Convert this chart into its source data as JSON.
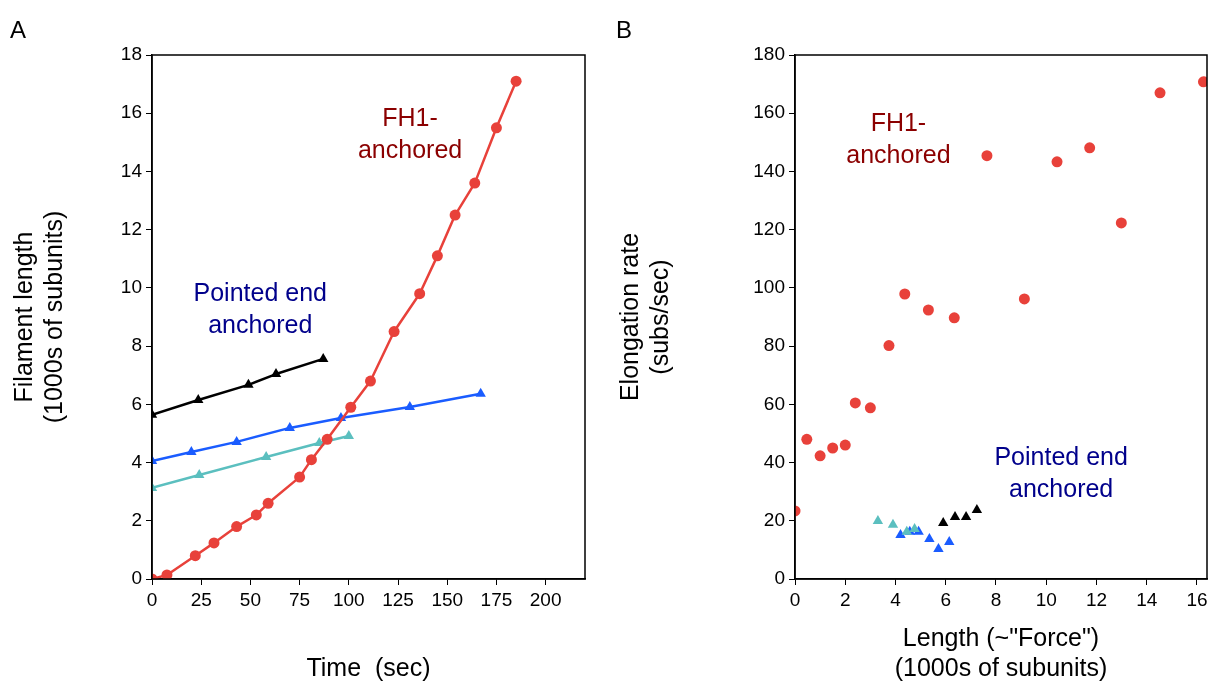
{
  "chart_data": [
    {
      "type": "line",
      "title": "A",
      "xlabel": "Time  (sec)",
      "ylabel": "Filament length\n(1000s of subunits)",
      "xlim": [
        0,
        220
      ],
      "xticks": [
        0,
        25,
        50,
        75,
        100,
        125,
        150,
        175,
        200
      ],
      "ylim": [
        0,
        18
      ],
      "yticks": [
        0,
        2,
        4,
        6,
        8,
        10,
        12,
        14,
        16,
        18
      ],
      "grid": false,
      "legend": false,
      "line_style": "solid",
      "series": [
        {
          "color": "#e8413a",
          "marker": "circle",
          "x": [
            0,
            7.6,
            22,
            31.5,
            43,
            53,
            59,
            75,
            81,
            89,
            101,
            111,
            123,
            136,
            145,
            154,
            164,
            175,
            185
          ],
          "values": [
            0,
            0.14,
            0.8,
            1.24,
            1.8,
            2.2,
            2.6,
            3.5,
            4.1,
            4.8,
            5.9,
            6.8,
            8.5,
            9.8,
            11.1,
            12.5,
            13.6,
            15.5,
            17.1
          ]
        },
        {
          "color": "#000000",
          "marker": "triangle",
          "x": [
            0,
            23.5,
            49,
            63,
            87
          ],
          "values": [
            5.64,
            6.15,
            6.67,
            7.04,
            7.56
          ]
        },
        {
          "color": "#1a5cff",
          "marker": "triangle",
          "x": [
            0,
            20,
            43,
            70,
            96,
            131,
            167
          ],
          "values": [
            4.05,
            4.36,
            4.71,
            5.19,
            5.53,
            5.91,
            6.36
          ]
        },
        {
          "color": "#5bbfbf",
          "marker": "triangle",
          "x": [
            0,
            24,
            58,
            85,
            100
          ],
          "values": [
            3.13,
            3.57,
            4.19,
            4.67,
            4.91
          ]
        }
      ],
      "annotations": [
        "FH1-\nanchored",
        "Pointed end\nanchored"
      ]
    },
    {
      "type": "scatter",
      "title": "B",
      "xlabel": "Length (~\"Force\")\n(1000s of subunits)",
      "ylabel": "Elongation rate\n(subs/sec)",
      "xlim": [
        0,
        16.4
      ],
      "xticks": [
        0,
        2,
        4,
        6,
        8,
        10,
        12,
        14,
        16
      ],
      "ylim": [
        0,
        180
      ],
      "yticks": [
        0,
        20,
        40,
        60,
        80,
        100,
        120,
        140,
        160,
        180
      ],
      "grid": false,
      "legend": false,
      "series": [
        {
          "color": "#e8413a",
          "marker": "circle",
          "x": [
            0,
            0.47,
            1.0,
            1.5,
            2.0,
            2.4,
            3.0,
            3.74,
            4.37,
            5.31,
            6.34,
            7.64,
            9.13,
            10.43,
            11.73,
            12.99,
            14.53,
            16.26
          ],
          "values": [
            23.4,
            48,
            42.3,
            45,
            46,
            60.5,
            58.8,
            80.2,
            97.9,
            92.4,
            89.7,
            145.4,
            96.2,
            143.3,
            148.1,
            122.3,
            167,
            170.8
          ]
        },
        {
          "color": "#5bbfbf",
          "marker": "triangle",
          "x": [
            3.3,
            3.9,
            4.45,
            4.76
          ],
          "values": [
            19.9,
            18.6,
            16.2,
            17.2
          ]
        },
        {
          "color": "#1a5cff",
          "marker": "triangle",
          "x": [
            4.2,
            4.57,
            4.92,
            5.35,
            5.71,
            6.14
          ],
          "values": [
            15.1,
            16.2,
            16.2,
            13.7,
            10.3,
            12.7
          ]
        },
        {
          "color": "#000000",
          "marker": "triangle",
          "x": [
            5.9,
            6.37,
            6.81,
            7.24
          ],
          "values": [
            19.2,
            21.3,
            21.3,
            23.7
          ]
        }
      ],
      "annotations": [
        "FH1-\nanchored",
        "Pointed end\nanchored"
      ]
    }
  ]
}
